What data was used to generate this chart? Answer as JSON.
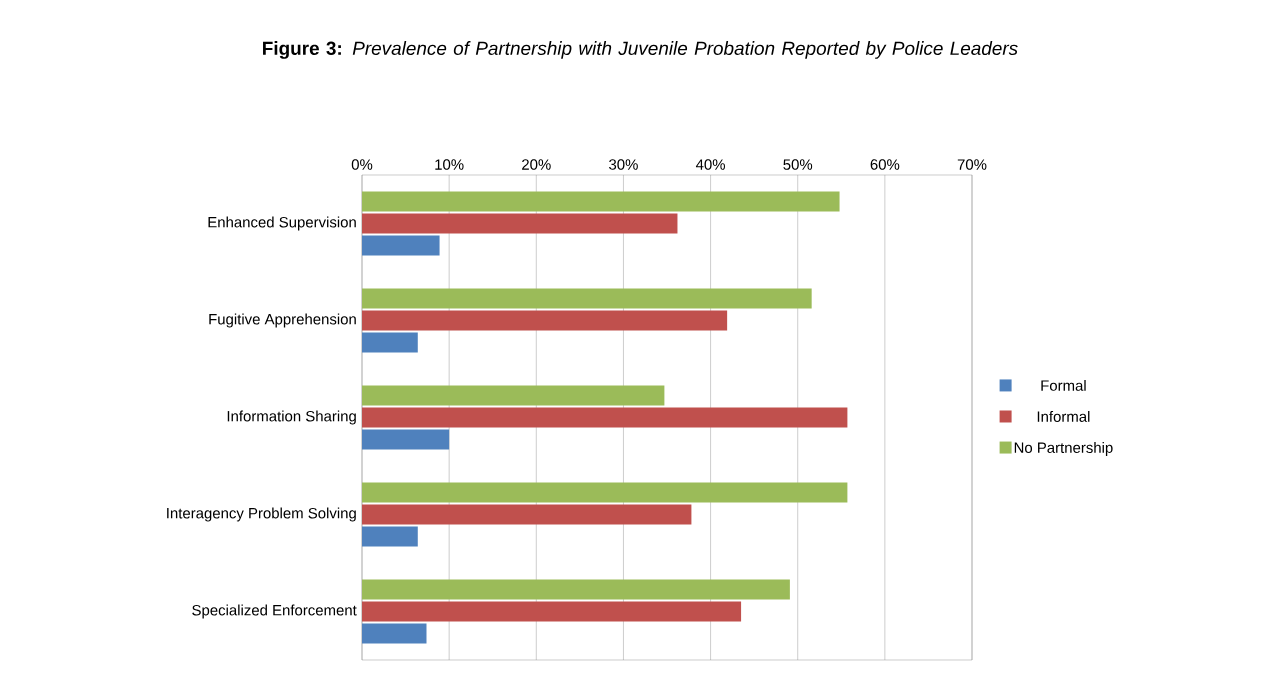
{
  "chart_data": {
    "type": "bar",
    "orientation": "horizontal",
    "title": "**Figure 3:** *Prevalence of Partnership with Juvenile Probation Reported by Police Leaders*",
    "categories": [
      "Enhanced Supervision",
      "Fugitive Apprehension",
      "Information Sharing",
      "Interagency Problem Solving",
      "Specialized Enforcement"
    ],
    "series": [
      {
        "name": "Formal",
        "color": "#4f81bd",
        "values": [
          8.9,
          6.4,
          10.0,
          6.4,
          7.4
        ]
      },
      {
        "name": "Informal",
        "color": "#c0504d",
        "values": [
          36.2,
          41.9,
          55.7,
          37.8,
          43.5
        ]
      },
      {
        "name": "No Partnership",
        "color": "#9bbb59",
        "values": [
          54.8,
          51.6,
          34.7,
          55.7,
          49.1
        ]
      }
    ],
    "xlim": [
      0,
      70
    ],
    "xticks": [
      {
        "value": 0,
        "label": "0%"
      },
      {
        "value": 10,
        "label": "10%"
      },
      {
        "value": 20,
        "label": "20%"
      },
      {
        "value": 30,
        "label": "30%"
      },
      {
        "value": 40,
        "label": "40%"
      },
      {
        "value": 50,
        "label": "50%"
      },
      {
        "value": 60,
        "label": "60%"
      },
      {
        "value": 70,
        "label": "70%"
      }
    ],
    "grid": "x",
    "legend": "right"
  }
}
